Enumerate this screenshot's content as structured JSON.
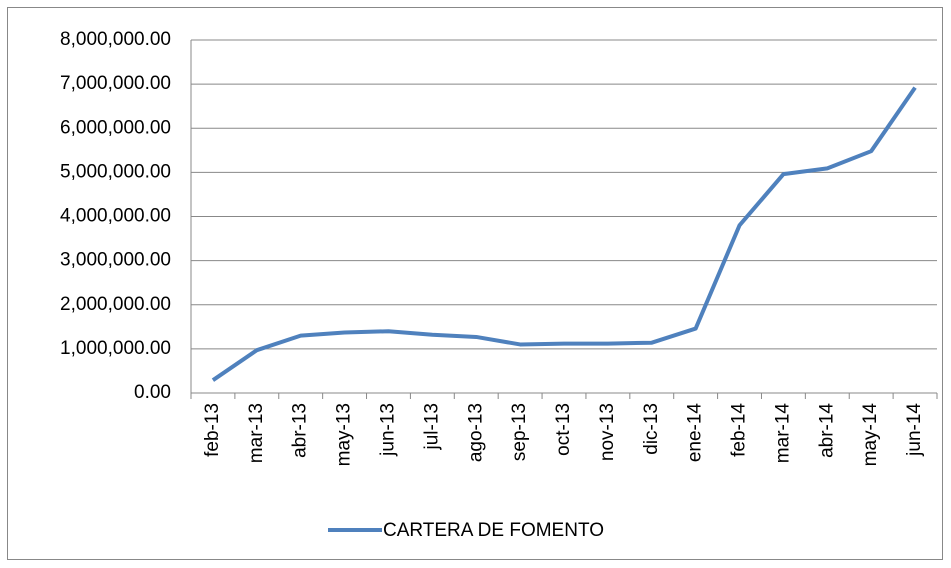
{
  "chart_data": {
    "type": "line",
    "categories": [
      "feb-13",
      "mar-13",
      "abr-13",
      "may-13",
      "jun-13",
      "jul-13",
      "ago-13",
      "sep-13",
      "oct-13",
      "nov-13",
      "dic-13",
      "ene-14",
      "feb-14",
      "mar-14",
      "abr-14",
      "may-14",
      "jun-14"
    ],
    "series": [
      {
        "name": "CARTERA DE FOMENTO",
        "color": "#4f81bd",
        "values": [
          290000,
          970000,
          1300000,
          1370000,
          1400000,
          1320000,
          1270000,
          1100000,
          1120000,
          1120000,
          1140000,
          1460000,
          3800000,
          4960000,
          5090000,
          5480000,
          6920000
        ]
      }
    ],
    "ylim": [
      0,
      8000000
    ],
    "yticks": [
      {
        "value": 0,
        "label": "0.00"
      },
      {
        "value": 1000000,
        "label": "1,000,000.00"
      },
      {
        "value": 2000000,
        "label": "2,000,000.00"
      },
      {
        "value": 3000000,
        "label": "3,000,000.00"
      },
      {
        "value": 4000000,
        "label": "4,000,000.00"
      },
      {
        "value": 5000000,
        "label": "5,000,000.00"
      },
      {
        "value": 6000000,
        "label": "6,000,000.00"
      },
      {
        "value": 7000000,
        "label": "7,000,000.00"
      },
      {
        "value": 8000000,
        "label": "8,000,000.00"
      }
    ],
    "grid": true,
    "legend": "bottom"
  }
}
